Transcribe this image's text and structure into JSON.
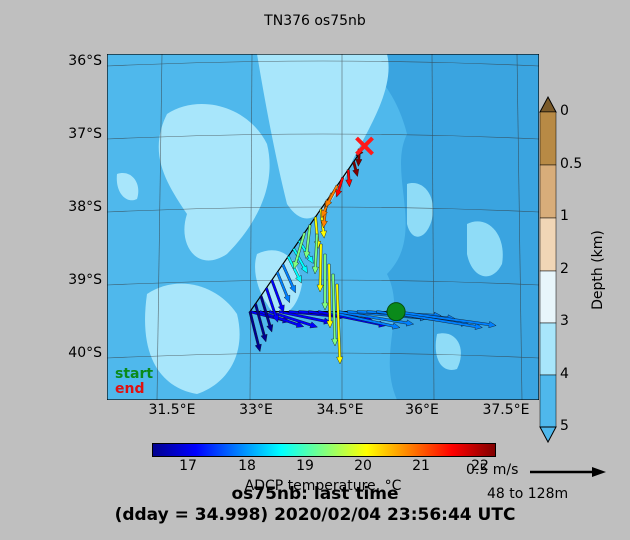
{
  "title": "TN376 os75nb",
  "map": {
    "lat_labels": [
      "36°S",
      "37°S",
      "38°S",
      "39°S",
      "40°S"
    ],
    "lon_labels": [
      "31.5°E",
      "33°E",
      "34.5°E",
      "36°E",
      "37.5°E"
    ],
    "lon_range": [
      30.5,
      38.3
    ],
    "lat_range": [
      -40.6,
      -35.9
    ],
    "start_point": {
      "lon": 35.72,
      "lat": -39.4
    },
    "end_point": {
      "lon": 35.15,
      "lat": -37.15
    },
    "legend_start": "start",
    "legend_end": "end",
    "colors": {
      "shallow": "#a8e6fb",
      "mid": "#56c1ef",
      "deep": "#38a3df",
      "start": "#0a8a1a",
      "end": "#ff1a1a"
    }
  },
  "depth_colorbar": {
    "label": "Depth (km)",
    "ticks": [
      "0",
      "0.5",
      "1",
      "2",
      "3",
      "4",
      "5"
    ],
    "colors": [
      "#7a5a2a",
      "#b88a45",
      "#d8ad7a",
      "#f1d6b6",
      "#e8f6fb",
      "#a8e6fb",
      "#56c1ef"
    ]
  },
  "temp_colorbar": {
    "label": "ADCP temperature, °C",
    "ticks": [
      "17",
      "18",
      "19",
      "20",
      "21",
      "22"
    ]
  },
  "scale": {
    "speed": "0.5 m/s",
    "depth_range": "48 to 128m"
  },
  "footer": {
    "line1": "os75nb: last time",
    "line2": "(dday = 34.998) 2020/02/04 23:56:44 UTC"
  }
}
